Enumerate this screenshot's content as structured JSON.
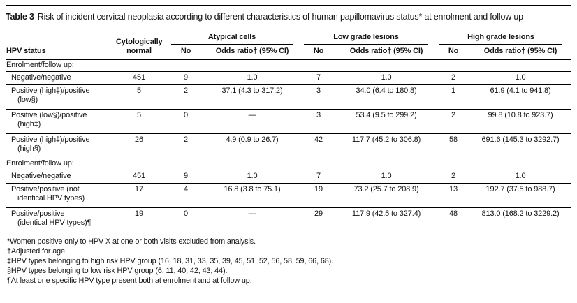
{
  "ink_color": "#000000",
  "background_color": "#ffffff",
  "title": {
    "label": "Table 3",
    "text": "Risk of incident cervical neoplasia according to different characteristics of human papillomavirus status* at enrolment and follow up"
  },
  "table": {
    "row_header": "HPV status",
    "normal_col_header": "Cytologically normal",
    "groups": [
      {
        "label": "Atypical cells",
        "no_header": "No",
        "or_header": "Odds ratio† (95% CI)"
      },
      {
        "label": "Low grade lesions",
        "no_header": "No",
        "or_header": "Odds ratio† (95% CI)"
      },
      {
        "label": "High grade lesions",
        "no_header": "No",
        "or_header": "Odds ratio† (95% CI)"
      }
    ],
    "sections": [
      {
        "label": "Enrolment/follow up:",
        "rows": [
          {
            "label": "Negative/negative",
            "label2": "",
            "values": [
              "451",
              "9",
              "1.0",
              "7",
              "1.0",
              "2",
              "1.0"
            ]
          },
          {
            "label": "Positive (high‡)/positive",
            "label2": "(low§)",
            "values": [
              "5",
              "2",
              "37.1 (4.3 to 317.2)",
              "3",
              "34.0 (6.4 to 180.8)",
              "1",
              "61.9 (4.1 to 941.8)"
            ]
          },
          {
            "label": "Positive (low§)/positive",
            "label2": "(high‡)",
            "values": [
              "5",
              "0",
              "—",
              "3",
              "53.4 (9.5 to 299.2)",
              "2",
              "99.8 (10.8 to 923.7)"
            ]
          },
          {
            "label": "Positive (high‡)/positive",
            "label2": "(high§)",
            "values": [
              "26",
              "2",
              "4.9 (0.9 to 26.7)",
              "42",
              "117.7 (45.2 to 306.8)",
              "58",
              "691.6 (145.3 to 3292.7)"
            ]
          }
        ]
      },
      {
        "label": "Enrolment/follow up:",
        "rows": [
          {
            "label": "Negative/negative",
            "label2": "",
            "values": [
              "451",
              "9",
              "1.0",
              "7",
              "1.0",
              "2",
              "1.0"
            ]
          },
          {
            "label": "Positive/positive (not",
            "label2": "identical HPV types)",
            "values": [
              "17",
              "4",
              "16.8 (3.8 to 75.1)",
              "19",
              "73.2 (25.7 to 208.9)",
              "13",
              "192.7 (37.5 to 988.7)"
            ]
          },
          {
            "label": "Positive/positive",
            "label2": "(identical HPV types)¶",
            "values": [
              "19",
              "0",
              "—",
              "29",
              "117.9 (42.5 to 327.4)",
              "48",
              "813.0 (168.2 to 3229.2)"
            ]
          }
        ]
      }
    ]
  },
  "footnotes": [
    "*Women positive only to HPV X at one or both visits excluded from analysis.",
    "†Adjusted for age.",
    "‡HPV types belonging to high risk HPV group (16, 18, 31, 33, 35, 39, 45, 51, 52, 56, 58, 59, 66, 68).",
    "§HPV types belonging to low risk HPV group (6, 11, 40, 42, 43, 44).",
    "¶At least one specific HPV type present both at enrolment and at follow up."
  ]
}
